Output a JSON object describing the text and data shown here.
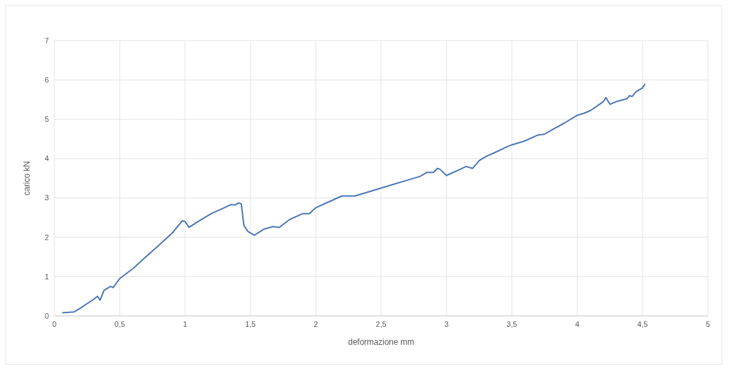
{
  "chart_data": {
    "type": "line",
    "xlabel": "deformazione mm",
    "ylabel": "carico kN",
    "series": [
      {
        "color": "#4a76b8",
        "x": [
          0.06,
          0.15,
          0.2,
          0.3,
          0.33,
          0.35,
          0.38,
          0.43,
          0.45,
          0.5,
          0.6,
          0.7,
          0.8,
          0.9,
          0.98,
          1.0,
          1.03,
          1.1,
          1.2,
          1.3,
          1.35,
          1.38,
          1.41,
          1.43,
          1.45,
          1.48,
          1.53,
          1.6,
          1.67,
          1.72,
          1.8,
          1.9,
          1.95,
          2.0,
          2.1,
          2.2,
          2.25,
          2.3,
          2.4,
          2.5,
          2.6,
          2.7,
          2.8,
          2.85,
          2.9,
          2.93,
          2.95,
          3.0,
          3.1,
          3.15,
          3.2,
          3.25,
          3.3,
          3.4,
          3.45,
          3.5,
          3.6,
          3.7,
          3.75,
          3.8,
          3.9,
          4.0,
          4.05,
          4.1,
          4.15,
          4.2,
          4.22,
          4.25,
          4.3,
          4.38,
          4.4,
          4.42,
          4.45,
          4.5,
          4.52
        ],
        "values": [
          0.08,
          0.1,
          0.2,
          0.42,
          0.5,
          0.4,
          0.65,
          0.75,
          0.72,
          0.95,
          1.2,
          1.5,
          1.8,
          2.1,
          2.42,
          2.4,
          2.25,
          2.4,
          2.6,
          2.75,
          2.83,
          2.82,
          2.87,
          2.85,
          2.3,
          2.15,
          2.05,
          2.2,
          2.27,
          2.25,
          2.45,
          2.6,
          2.6,
          2.75,
          2.9,
          3.05,
          3.05,
          3.05,
          3.15,
          3.25,
          3.35,
          3.45,
          3.55,
          3.65,
          3.65,
          3.75,
          3.73,
          3.57,
          3.72,
          3.8,
          3.75,
          3.95,
          4.05,
          4.2,
          4.28,
          4.35,
          4.45,
          4.6,
          4.62,
          4.72,
          4.9,
          5.1,
          5.15,
          5.22,
          5.33,
          5.45,
          5.55,
          5.38,
          5.45,
          5.52,
          5.6,
          5.58,
          5.7,
          5.8,
          5.9
        ]
      }
    ],
    "xlim": [
      0,
      5
    ],
    "xticks": [
      0,
      {
        "value": 0.5,
        "label": "0,5"
      },
      1,
      {
        "value": 1.5,
        "label": "1,5"
      },
      2,
      {
        "value": 2.5,
        "label": "2,5"
      },
      3,
      {
        "value": 3.5,
        "label": "3,5"
      },
      4,
      {
        "value": 4.5,
        "label": "4,5"
      },
      5
    ],
    "ylim": [
      0,
      7
    ],
    "yticks": [
      0,
      1,
      2,
      3,
      4,
      5,
      6,
      7
    ],
    "grid": true,
    "marker": "none",
    "line_style": "solid"
  }
}
